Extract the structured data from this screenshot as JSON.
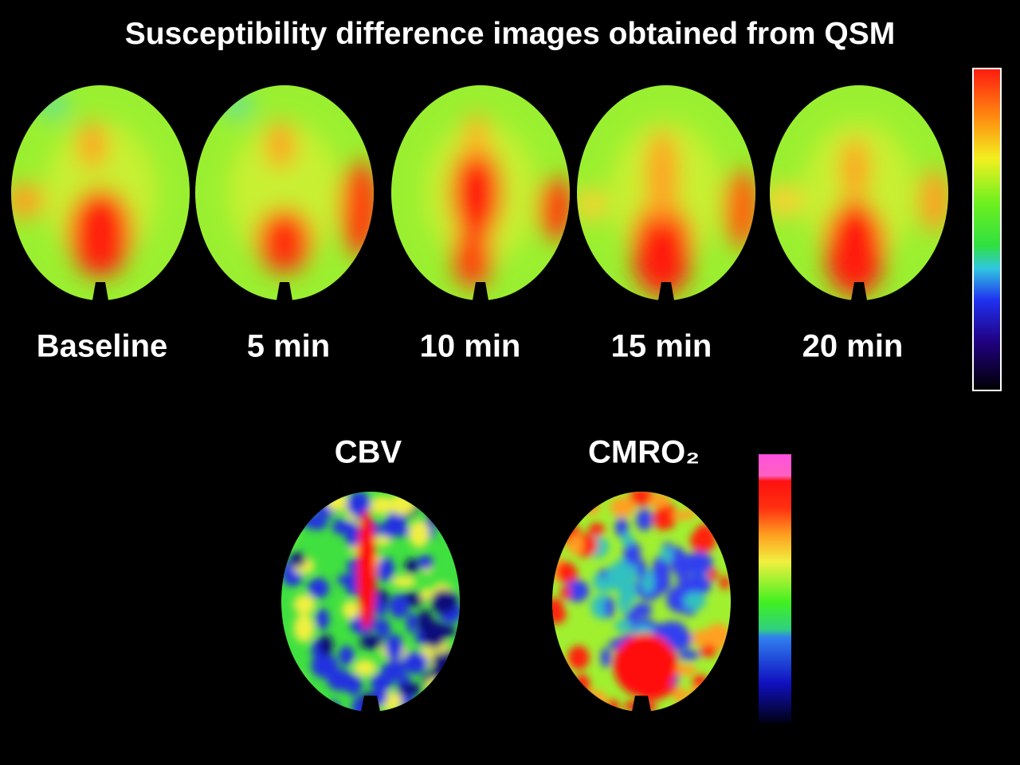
{
  "header": {
    "title": "Susceptibility difference images obtained from QSM"
  },
  "panels": [
    {
      "label": "Baseline"
    },
    {
      "label": "5 min"
    },
    {
      "label": "10 min"
    },
    {
      "label": "15 min"
    },
    {
      "label": "20 min"
    }
  ],
  "maps": [
    {
      "label": "CBV"
    },
    {
      "label": "CMRO₂"
    }
  ]
}
